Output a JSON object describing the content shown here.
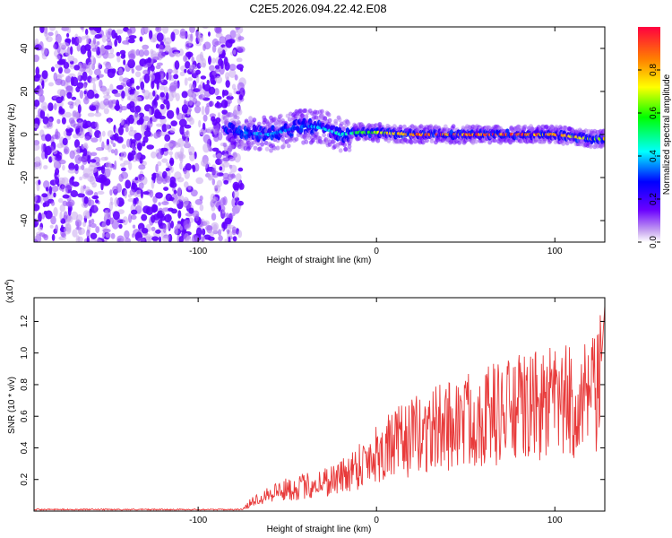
{
  "figure_title": "C2E5.2026.094.22.42.E08",
  "chart_data": [
    {
      "type": "heatmap",
      "title": "C2E5.2026.094.22.42.E08",
      "xlabel": "Height of straight line (km)",
      "ylabel": "Frequency (Hz)",
      "xlim": [
        -192,
        128
      ],
      "ylim": [
        -50,
        50
      ],
      "x_ticks": [
        -100,
        0,
        100
      ],
      "y_ticks": [
        -40,
        -20,
        0,
        20,
        40
      ],
      "grid": false,
      "colorbar": {
        "label": "Normalized spectral amplitude",
        "range": [
          0,
          1
        ],
        "ticks": [
          "0.0",
          "0.2",
          "0.4",
          "0.6",
          "0.8"
        ],
        "tick_values": [
          0.0,
          0.2,
          0.4,
          0.6,
          0.8
        ]
      },
      "noise_region": {
        "x": [
          -192,
          -75
        ],
        "y": [
          -50,
          50
        ],
        "level": 0.15
      },
      "signal_ridge": [
        {
          "x": -85,
          "y": 2,
          "level": 0.15
        },
        {
          "x": -75,
          "y": 1,
          "level": 0.35
        },
        {
          "x": -60,
          "y": 0,
          "level": 0.4
        },
        {
          "x": -50,
          "y": 2,
          "level": 0.35
        },
        {
          "x": -40,
          "y": 4,
          "level": 0.35
        },
        {
          "x": -30,
          "y": 3,
          "level": 0.45
        },
        {
          "x": -20,
          "y": 0,
          "level": 0.45
        },
        {
          "x": -10,
          "y": 1,
          "level": 0.6
        },
        {
          "x": 0,
          "y": 1,
          "level": 0.7
        },
        {
          "x": 20,
          "y": 0,
          "level": 0.9
        },
        {
          "x": 40,
          "y": 0,
          "level": 0.95
        },
        {
          "x": 60,
          "y": 0,
          "level": 0.95
        },
        {
          "x": 80,
          "y": 0,
          "level": 0.95
        },
        {
          "x": 100,
          "y": 0,
          "level": 0.9
        },
        {
          "x": 120,
          "y": -2,
          "level": 0.75
        }
      ]
    },
    {
      "type": "line",
      "xlabel": "Height of straight line (km)",
      "ylabel": "SNR (10 * v/v)",
      "y_multiplier_label": "(x10",
      "y_multiplier_exp": "4",
      "y_multiplier_close": ")",
      "xlim": [
        -192,
        128
      ],
      "ylim": [
        0,
        1.35
      ],
      "x_ticks": [
        -100,
        0,
        100
      ],
      "y_ticks": [
        0.2,
        0.4,
        0.6,
        0.8,
        1.0,
        1.2
      ],
      "y_tick_labels": [
        "0.2",
        "0.4",
        "0.6",
        "0.8",
        "1.0",
        "1.2"
      ],
      "grid": false,
      "series": [
        {
          "color": "#e83a3a",
          "envelope": {
            "x": [
              -192,
              -75,
              -70,
              -60,
              -40,
              -20,
              -10,
              0,
              20,
              40,
              60,
              80,
              100,
              115,
              125,
              128
            ],
            "y": [
              0.01,
              0.01,
              0.06,
              0.12,
              0.16,
              0.22,
              0.3,
              0.38,
              0.48,
              0.56,
              0.62,
              0.66,
              0.7,
              0.7,
              0.75,
              1.3
            ]
          }
        }
      ]
    }
  ]
}
